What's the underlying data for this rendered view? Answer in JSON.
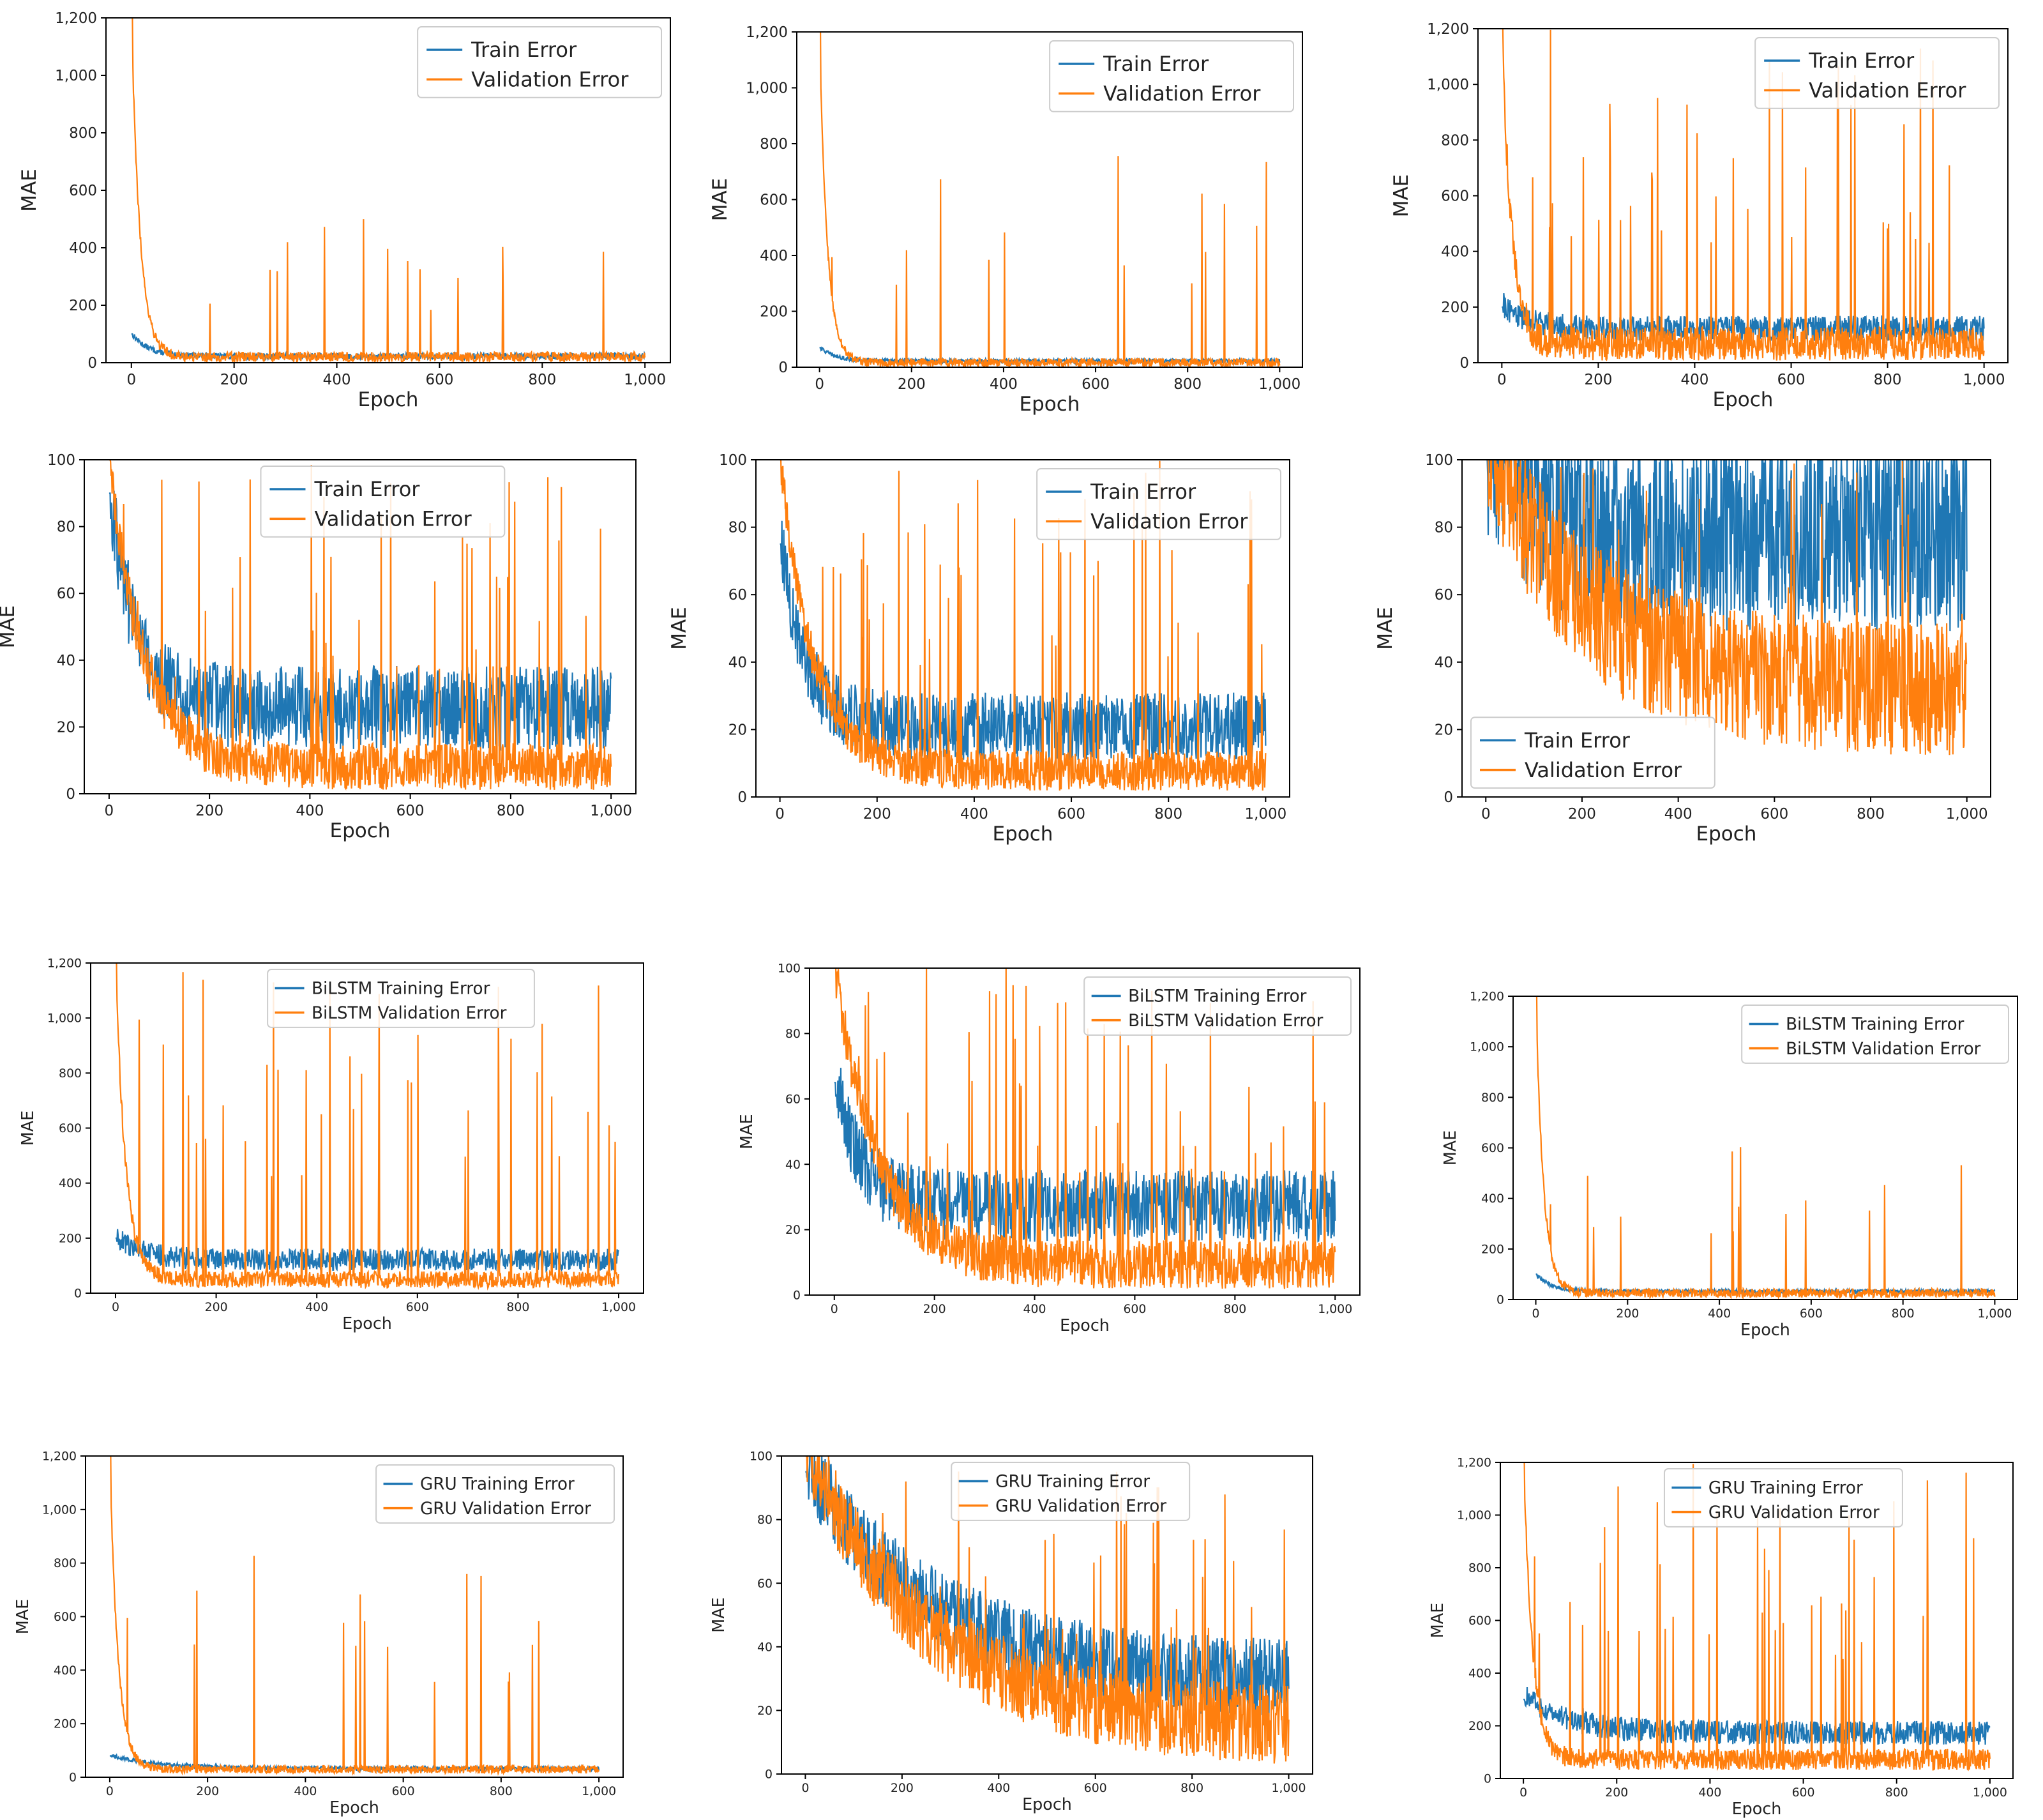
{
  "chart_data": [
    {
      "type": "line",
      "xlabel": "Epoch",
      "ylabel": "MAE",
      "xlim": [
        0,
        1000
      ],
      "ylim": [
        0,
        1200
      ],
      "xticks": [
        0,
        200,
        400,
        600,
        800,
        1000
      ],
      "xtick_labels": [
        "0",
        "200",
        "400",
        "600",
        "800",
        "1,000"
      ],
      "yticks": [
        0,
        200,
        400,
        600,
        800,
        1000,
        1200
      ],
      "ytick_labels": [
        "0",
        "200",
        "400",
        "600",
        "800",
        "1,000",
        "1,200"
      ],
      "legend": "top-right",
      "series": [
        {
          "name": "Train Error",
          "color": "#1f77b4",
          "start": 100,
          "floor": 20,
          "decay": 0.03,
          "noise": 20,
          "spikes": 0
        },
        {
          "name": "Validation Error",
          "color": "#ff7f0e",
          "start": 1200,
          "floor": 15,
          "decay": 0.06,
          "noise": 35,
          "spikes": 14,
          "spike_max": 500
        }
      ]
    },
    {
      "type": "line",
      "xlabel": "Epoch",
      "ylabel": "MAE",
      "xlim": [
        0,
        1000
      ],
      "ylim": [
        0,
        1200
      ],
      "xticks": [
        0,
        200,
        400,
        600,
        800,
        1000
      ],
      "xtick_labels": [
        "0",
        "200",
        "400",
        "600",
        "800",
        "1,000"
      ],
      "yticks": [
        0,
        200,
        400,
        600,
        800,
        1000,
        1200
      ],
      "ytick_labels": [
        "0",
        "200",
        "400",
        "600",
        "800",
        "1,000",
        "1,200"
      ],
      "legend": "top-right",
      "series": [
        {
          "name": "Train Error",
          "color": "#1f77b4",
          "start": 70,
          "floor": 20,
          "decay": 0.03,
          "noise": 15,
          "spikes": 0
        },
        {
          "name": "Validation Error",
          "color": "#ff7f0e",
          "start": 1200,
          "floor": 12,
          "decay": 0.06,
          "noise": 30,
          "spikes": 14,
          "spike_max": 820
        }
      ]
    },
    {
      "type": "line",
      "xlabel": "Epoch",
      "ylabel": "MAE",
      "xlim": [
        0,
        1000
      ],
      "ylim": [
        0,
        1200
      ],
      "xticks": [
        0,
        200,
        400,
        600,
        800,
        1000
      ],
      "xtick_labels": [
        "0",
        "200",
        "400",
        "600",
        "800",
        "1,000"
      ],
      "yticks": [
        0,
        200,
        400,
        600,
        800,
        1000,
        1200
      ],
      "ytick_labels": [
        "0",
        "200",
        "400",
        "600",
        "800",
        "1,000",
        "1,200"
      ],
      "legend": "top-right",
      "series": [
        {
          "name": "Train Error",
          "color": "#1f77b4",
          "start": 200,
          "floor": 110,
          "decay": 0.02,
          "noise": 90,
          "spikes": 0
        },
        {
          "name": "Validation Error",
          "color": "#ff7f0e",
          "start": 1200,
          "floor": 50,
          "decay": 0.05,
          "noise": 120,
          "spikes": 40,
          "spike_max": 1200
        }
      ]
    },
    {
      "type": "line",
      "xlabel": "Epoch",
      "ylabel": "MAE",
      "xlim": [
        0,
        1000
      ],
      "ylim": [
        0,
        100
      ],
      "xticks": [
        0,
        200,
        400,
        600,
        800,
        1000
      ],
      "xtick_labels": [
        "0",
        "200",
        "400",
        "600",
        "800",
        "1,000"
      ],
      "yticks": [
        0,
        20,
        40,
        60,
        80,
        100
      ],
      "ytick_labels": [
        "0",
        "20",
        "40",
        "60",
        "80",
        "100"
      ],
      "legend": "top-center",
      "series": [
        {
          "name": "Train Error",
          "color": "#1f77b4",
          "start": 90,
          "floor": 22,
          "decay": 0.02,
          "noise": 25,
          "spikes": 0
        },
        {
          "name": "Validation Error",
          "color": "#ff7f0e",
          "start": 100,
          "floor": 6,
          "decay": 0.015,
          "noise": 14,
          "spikes": 45,
          "spike_max": 100
        }
      ]
    },
    {
      "type": "line",
      "xlabel": "Epoch",
      "ylabel": "MAE",
      "xlim": [
        0,
        1000
      ],
      "ylim": [
        0,
        100
      ],
      "xticks": [
        0,
        200,
        400,
        600,
        800,
        1000
      ],
      "xtick_labels": [
        "0",
        "200",
        "400",
        "600",
        "800",
        "1,000"
      ],
      "yticks": [
        0,
        20,
        40,
        60,
        80,
        100
      ],
      "ytick_labels": [
        "0",
        "20",
        "40",
        "60",
        "80",
        "100"
      ],
      "legend": "top-right",
      "series": [
        {
          "name": "Train Error",
          "color": "#1f77b4",
          "start": 75,
          "floor": 18,
          "decay": 0.02,
          "noise": 20,
          "spikes": 0
        },
        {
          "name": "Validation Error",
          "color": "#ff7f0e",
          "start": 100,
          "floor": 6,
          "decay": 0.015,
          "noise": 12,
          "spikes": 45,
          "spike_max": 100
        }
      ]
    },
    {
      "type": "line",
      "xlabel": "Epoch",
      "ylabel": "MAE",
      "xlim": [
        0,
        1000
      ],
      "ylim": [
        0,
        100
      ],
      "xticks": [
        0,
        200,
        400,
        600,
        800,
        1000
      ],
      "xtick_labels": [
        "0",
        "200",
        "400",
        "600",
        "800",
        "1,000"
      ],
      "yticks": [
        0,
        20,
        40,
        60,
        80,
        100
      ],
      "ytick_labels": [
        "0",
        "20",
        "40",
        "60",
        "80",
        "100"
      ],
      "legend": "bottom-left",
      "series": [
        {
          "name": "Train Error",
          "color": "#1f77b4",
          "start": 100,
          "floor": 70,
          "decay": 0.01,
          "noise": 60,
          "spikes": 60,
          "spike_max": 100
        },
        {
          "name": "Validation Error",
          "color": "#ff7f0e",
          "start": 100,
          "floor": 25,
          "decay": 0.005,
          "noise": 40,
          "spikes": 40,
          "spike_max": 100
        }
      ]
    },
    {
      "type": "line",
      "xlabel": "Epoch",
      "ylabel": "MAE",
      "xlim": [
        0,
        1000
      ],
      "ylim": [
        0,
        1200
      ],
      "xticks": [
        0,
        200,
        400,
        600,
        800,
        1000
      ],
      "xtick_labels": [
        "0",
        "200",
        "400",
        "600",
        "800",
        "1,000"
      ],
      "yticks": [
        0,
        200,
        400,
        600,
        800,
        1000,
        1200
      ],
      "ytick_labels": [
        "0",
        "200",
        "400",
        "600",
        "800",
        "1,000",
        "1,200"
      ],
      "legend": "top-center",
      "series": [
        {
          "name": "BiLSTM Training Error",
          "color": "#1f77b4",
          "start": 200,
          "floor": 110,
          "decay": 0.02,
          "noise": 80,
          "spikes": 0
        },
        {
          "name": "BiLSTM Validation Error",
          "color": "#ff7f0e",
          "start": 1200,
          "floor": 40,
          "decay": 0.05,
          "noise": 60,
          "spikes": 40,
          "spike_max": 1200
        }
      ]
    },
    {
      "type": "line",
      "xlabel": "Epoch",
      "ylabel": "MAE",
      "xlim": [
        0,
        1000
      ],
      "ylim": [
        0,
        100
      ],
      "xticks": [
        0,
        200,
        400,
        600,
        800,
        1000
      ],
      "xtick_labels": [
        "0",
        "200",
        "400",
        "600",
        "800",
        "1,000"
      ],
      "yticks": [
        0,
        20,
        40,
        60,
        80,
        100
      ],
      "ytick_labels": [
        "0",
        "20",
        "40",
        "60",
        "80",
        "100"
      ],
      "legend": "top-right",
      "series": [
        {
          "name": "BiLSTM Training Error",
          "color": "#1f77b4",
          "start": 65,
          "floor": 24,
          "decay": 0.02,
          "noise": 22,
          "spikes": 0
        },
        {
          "name": "BiLSTM Validation Error",
          "color": "#ff7f0e",
          "start": 100,
          "floor": 7,
          "decay": 0.012,
          "noise": 15,
          "spikes": 50,
          "spike_max": 100
        }
      ]
    },
    {
      "type": "line",
      "xlabel": "Epoch",
      "ylabel": "MAE",
      "xlim": [
        0,
        1000
      ],
      "ylim": [
        0,
        1200
      ],
      "xticks": [
        0,
        200,
        400,
        600,
        800,
        1000
      ],
      "xtick_labels": [
        "0",
        "200",
        "400",
        "600",
        "800",
        "1,000"
      ],
      "yticks": [
        0,
        200,
        400,
        600,
        800,
        1000,
        1200
      ],
      "ytick_labels": [
        "0",
        "200",
        "400",
        "600",
        "800",
        "1,000",
        "1,200"
      ],
      "legend": "top-right",
      "series": [
        {
          "name": "BiLSTM Training Error",
          "color": "#1f77b4",
          "start": 100,
          "floor": 30,
          "decay": 0.03,
          "noise": 15,
          "spikes": 0
        },
        {
          "name": "BiLSTM Validation Error",
          "color": "#ff7f0e",
          "start": 1200,
          "floor": 20,
          "decay": 0.06,
          "noise": 35,
          "spikes": 14,
          "spike_max": 660
        }
      ]
    },
    {
      "type": "line",
      "xlabel": "Epoch",
      "ylabel": "MAE",
      "xlim": [
        0,
        1000
      ],
      "ylim": [
        0,
        1200
      ],
      "xticks": [
        0,
        200,
        400,
        600,
        800,
        1000
      ],
      "xtick_labels": [
        "0",
        "200",
        "400",
        "600",
        "800",
        "1,000"
      ],
      "yticks": [
        0,
        200,
        400,
        600,
        800,
        1000,
        1200
      ],
      "ytick_labels": [
        "0",
        "200",
        "400",
        "600",
        "800",
        "1,000",
        "1,200"
      ],
      "legend": "top-right",
      "series": [
        {
          "name": "GRU Training Error",
          "color": "#1f77b4",
          "start": 80,
          "floor": 30,
          "decay": 0.01,
          "noise": 15,
          "spikes": 0
        },
        {
          "name": "GRU Validation Error",
          "color": "#ff7f0e",
          "start": 1200,
          "floor": 25,
          "decay": 0.06,
          "noise": 30,
          "spikes": 16,
          "spike_max": 880
        }
      ]
    },
    {
      "type": "line",
      "xlabel": "Epoch",
      "ylabel": "MAE",
      "xlim": [
        0,
        1000
      ],
      "ylim": [
        0,
        100
      ],
      "xticks": [
        0,
        200,
        400,
        600,
        800,
        1000
      ],
      "xtick_labels": [
        "0",
        "200",
        "400",
        "600",
        "800",
        "1,000"
      ],
      "yticks": [
        0,
        20,
        40,
        60,
        80,
        100
      ],
      "ytick_labels": [
        "0",
        "20",
        "40",
        "60",
        "80",
        "100"
      ],
      "legend": "top-center",
      "series": [
        {
          "name": "GRU Training Error",
          "color": "#1f77b4",
          "start": 95,
          "floor": 25,
          "decay": 0.004,
          "noise": 25,
          "spikes": 0
        },
        {
          "name": "GRU Validation Error",
          "color": "#ff7f0e",
          "start": 100,
          "floor": 10,
          "decay": 0.004,
          "noise": 25,
          "spikes": 45,
          "spike_max": 100
        }
      ]
    },
    {
      "type": "line",
      "xlabel": "Epoch",
      "ylabel": "MAE",
      "xlim": [
        0,
        1000
      ],
      "ylim": [
        0,
        1200
      ],
      "xticks": [
        0,
        200,
        400,
        600,
        800,
        1000
      ],
      "xtick_labels": [
        "0",
        "200",
        "400",
        "600",
        "800",
        "1,000"
      ],
      "yticks": [
        0,
        200,
        400,
        600,
        800,
        1000,
        1200
      ],
      "ytick_labels": [
        "0",
        "200",
        "400",
        "600",
        "800",
        "1,000",
        "1,200"
      ],
      "legend": "top-center",
      "series": [
        {
          "name": "GRU Training Error",
          "color": "#1f77b4",
          "start": 300,
          "floor": 160,
          "decay": 0.01,
          "noise": 90,
          "spikes": 0
        },
        {
          "name": "GRU Validation Error",
          "color": "#ff7f0e",
          "start": 1200,
          "floor": 60,
          "decay": 0.05,
          "noise": 80,
          "spikes": 40,
          "spike_max": 1200
        }
      ]
    }
  ]
}
